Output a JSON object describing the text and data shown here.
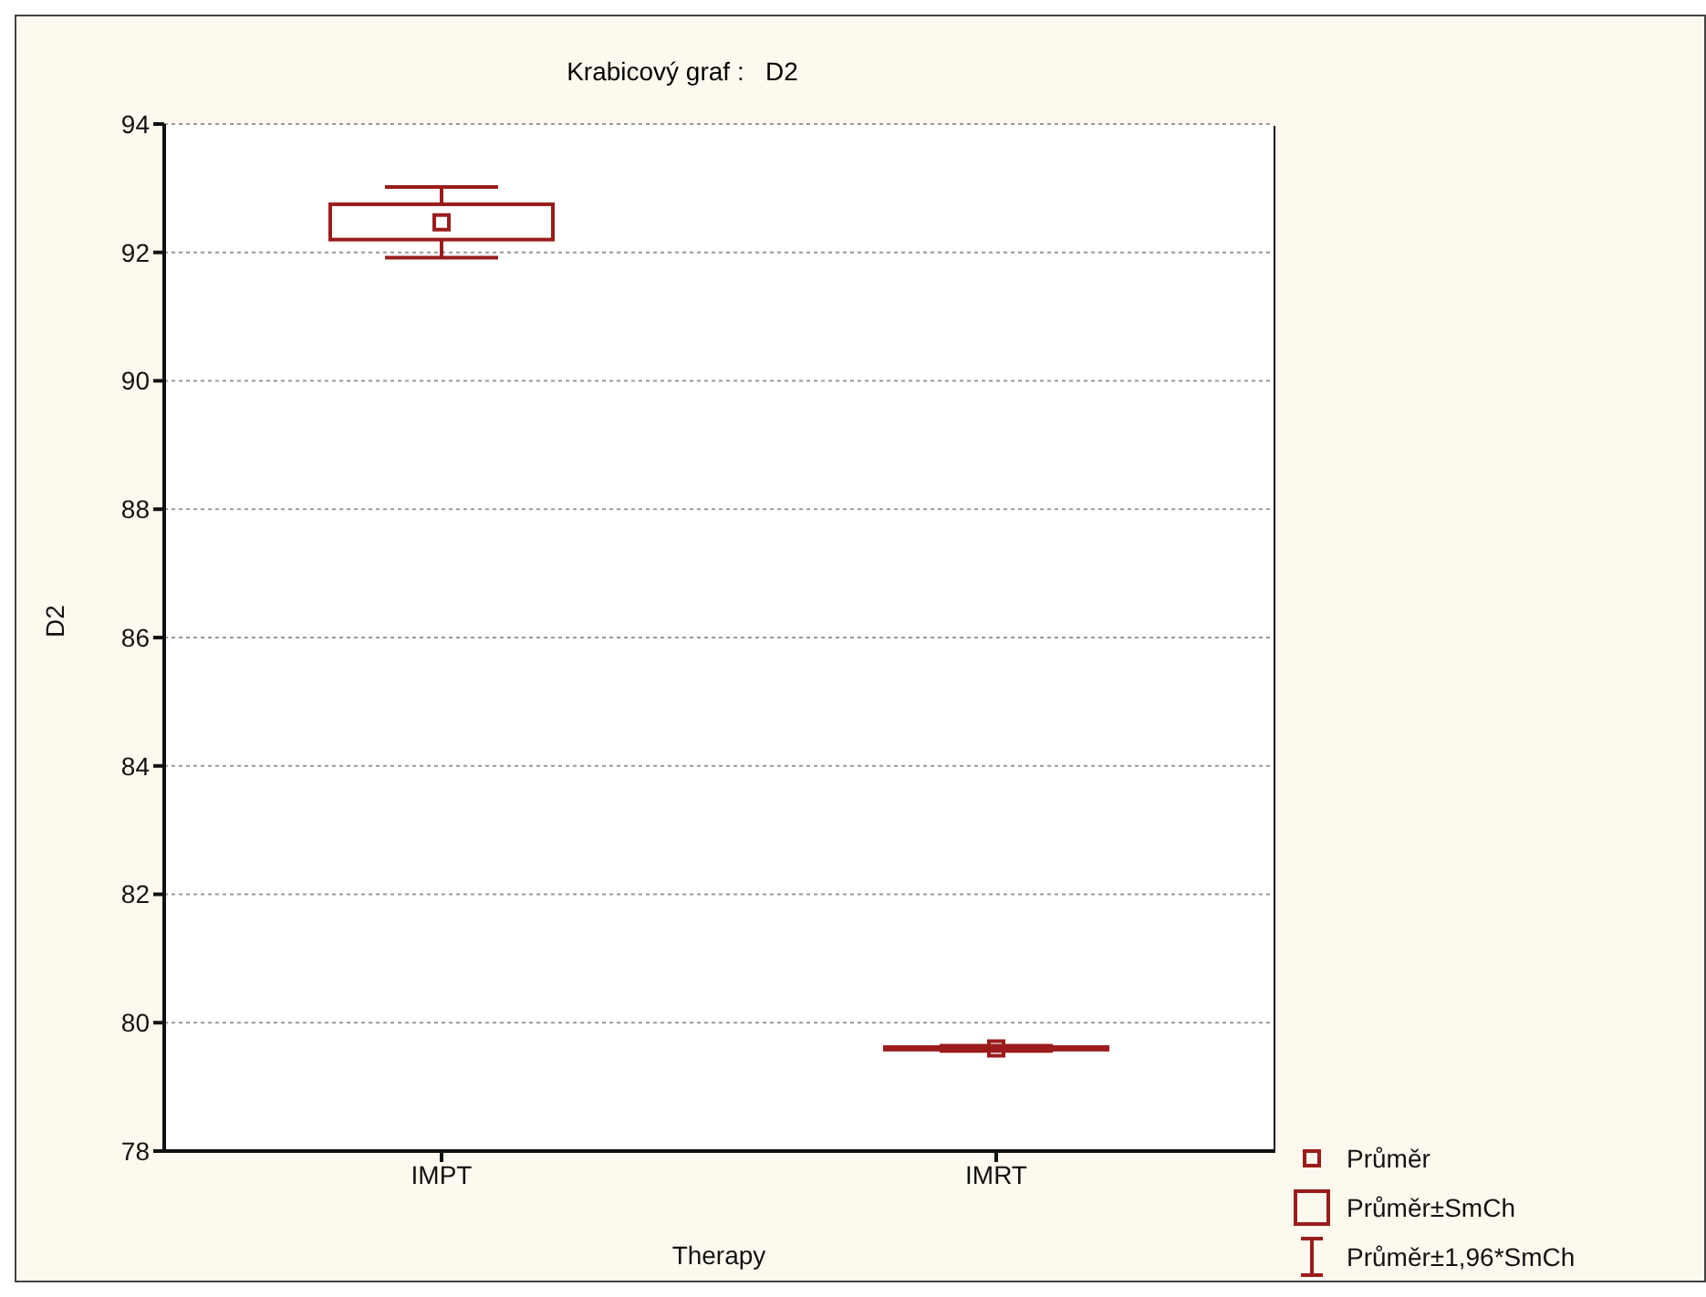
{
  "chart_data": {
    "type": "box",
    "title": "Krabicový graf :   D2",
    "xlabel": "Therapy",
    "ylabel": "D2",
    "categories": [
      "IMPT",
      "IMRT"
    ],
    "series": [
      {
        "color": "#9b1c1c",
        "boxes": [
          {
            "low": 91.92,
            "q1": 92.2,
            "mean": 92.47,
            "q3": 92.75,
            "high": 93.02
          },
          {
            "low": 79.56,
            "q1": 79.58,
            "mean": 79.6,
            "q3": 79.62,
            "high": 79.64
          }
        ]
      }
    ],
    "ylim": [
      78,
      94
    ],
    "yticks": [
      78,
      80,
      82,
      84,
      86,
      88,
      90,
      92,
      94
    ],
    "grid": "y",
    "marker": "square",
    "annotations": [
      "Průměr",
      "Průměr±SmCh",
      "Průměr±1,96*SmCh"
    ]
  }
}
